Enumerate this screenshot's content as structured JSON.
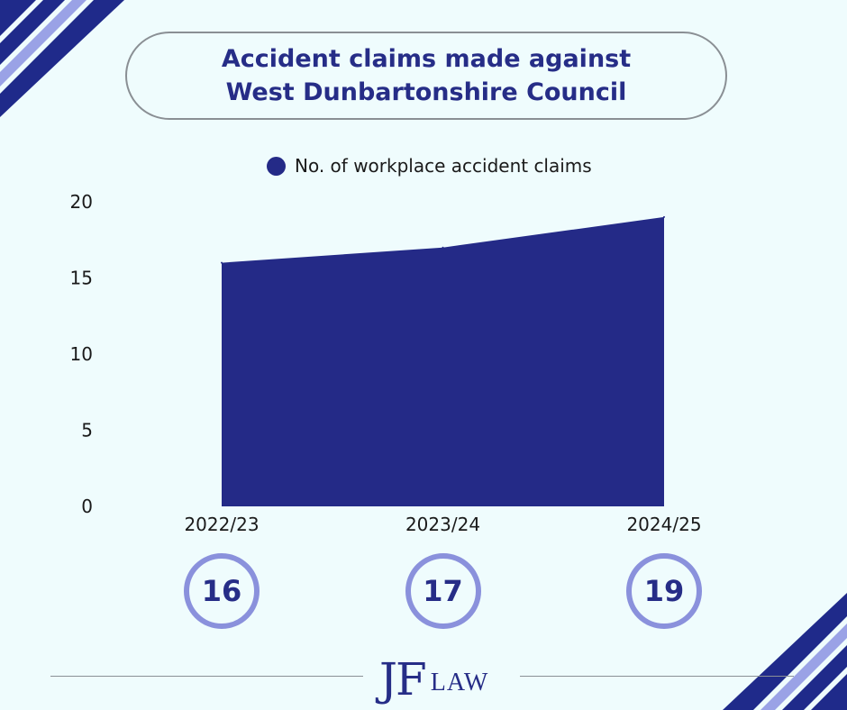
{
  "title": {
    "line1": "Accident claims made against",
    "line2": "West Dunbartonshire Council"
  },
  "colors": {
    "background": "#effcfd",
    "primary": "#242a87",
    "circle_border": "#8a91dc",
    "corner_dark": "#1f2a8a",
    "corner_light": "#9aa2e6"
  },
  "chart_data": {
    "type": "area",
    "title": "Accident claims made against West Dunbartonshire Council",
    "categories": [
      "2022/23",
      "2023/24",
      "2024/25"
    ],
    "series": [
      {
        "name": "No. of workplace accident claims",
        "values": [
          16,
          17,
          19
        ]
      }
    ],
    "ylim": [
      0,
      20
    ],
    "yticks": [
      "0",
      "5",
      "10",
      "15",
      "20"
    ],
    "grid": false,
    "legend_position": "top"
  },
  "value_badges": [
    "16",
    "17",
    "19"
  ],
  "logo": {
    "mark": "JF",
    "text": "LAW"
  }
}
